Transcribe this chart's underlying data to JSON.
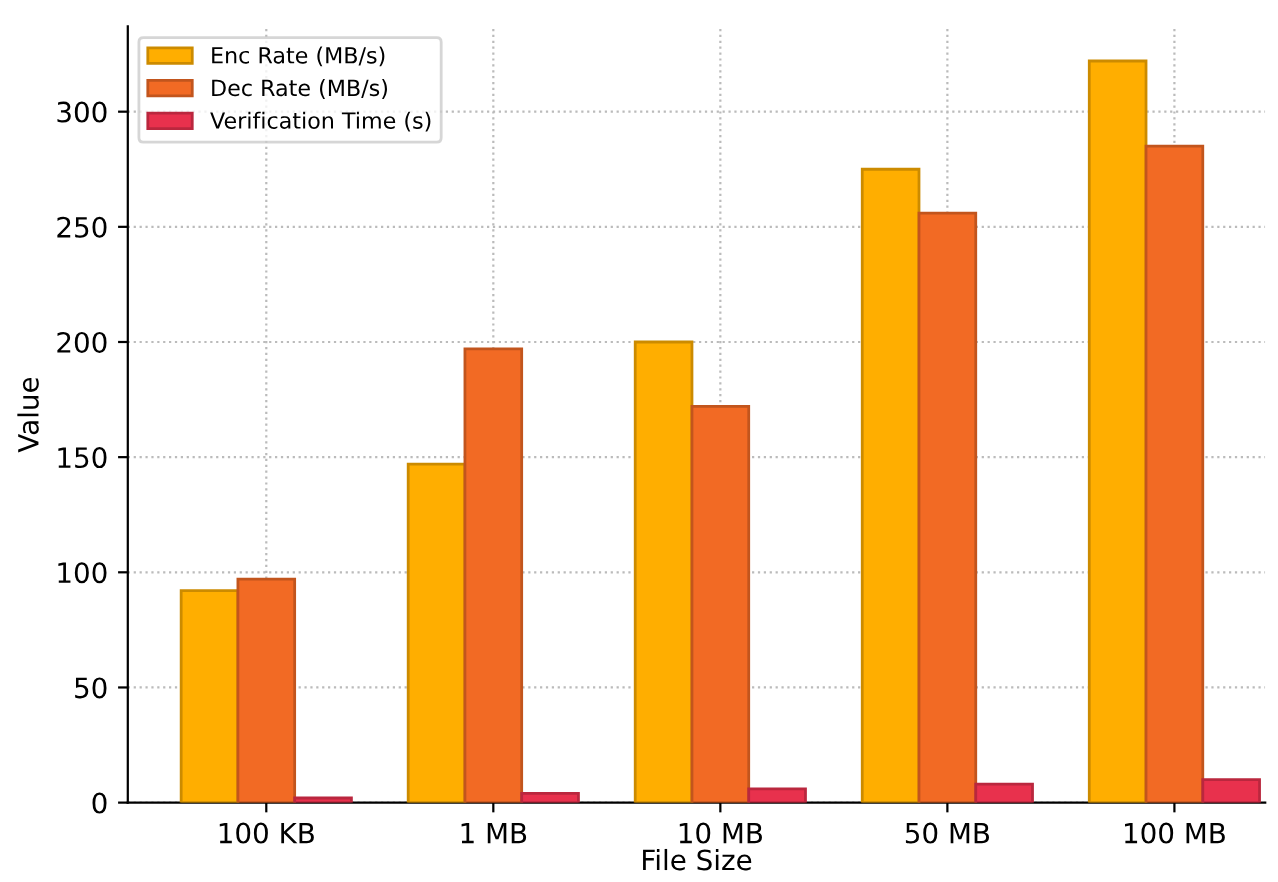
{
  "chart_data": {
    "type": "bar",
    "xlabel": "File Size",
    "ylabel": "Value",
    "categories": [
      "100 KB",
      "1 MB",
      "10 MB",
      "50 MB",
      "100 MB"
    ],
    "series": [
      {
        "name": "Enc Rate (MB/s)",
        "color": "#ffae00",
        "values": [
          92,
          147,
          200,
          275,
          322
        ]
      },
      {
        "name": "Dec Rate (MB/s)",
        "color": "#f26a24",
        "values": [
          97,
          197,
          172,
          256,
          285
        ]
      },
      {
        "name": "Verification Time (s)",
        "color": "#e8314d",
        "values": [
          2,
          4,
          6,
          8,
          10
        ]
      }
    ],
    "ylim": [
      0,
      337
    ],
    "yticks": [
      0,
      50,
      100,
      150,
      200,
      250,
      300
    ],
    "grid": true,
    "legend": "top left"
  }
}
